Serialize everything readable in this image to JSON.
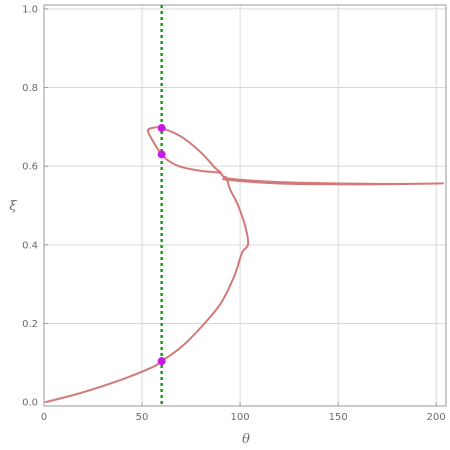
{
  "chart_data": {
    "type": "line",
    "xlabel": "θ",
    "ylabel": "ξ",
    "xlim": [
      0,
      205
    ],
    "ylim": [
      -0.01,
      1.01
    ],
    "xticks": [
      0,
      50,
      100,
      150,
      200
    ],
    "xtick_labels": [
      "0",
      "50",
      "100",
      "150",
      "200"
    ],
    "yticks": [
      0.0,
      0.2,
      0.4,
      0.6,
      0.8,
      1.0
    ],
    "ytick_labels": [
      "0.0",
      "0.2",
      "0.4",
      "0.6",
      "0.8",
      "1.0"
    ],
    "grid": true,
    "series": [
      {
        "color": "#d27a7a",
        "points": [
          [
            1,
            0.0
          ],
          [
            20,
            0.025
          ],
          [
            40,
            0.058
          ],
          [
            55,
            0.088
          ],
          [
            60,
            0.104
          ],
          [
            70,
            0.14
          ],
          [
            80,
            0.19
          ],
          [
            90,
            0.25
          ],
          [
            97,
            0.32
          ],
          [
            101,
            0.38
          ],
          [
            104,
            0.4
          ],
          [
            103,
            0.44
          ],
          [
            99,
            0.5
          ],
          [
            95,
            0.54
          ],
          [
            93,
            0.57
          ],
          [
            92,
            0.572
          ],
          [
            95,
            0.568
          ],
          [
            110,
            0.562
          ],
          [
            130,
            0.558
          ],
          [
            170,
            0.555
          ],
          [
            200,
            0.556
          ],
          [
            200,
            0.556
          ],
          [
            175,
            0.554
          ],
          [
            150,
            0.554
          ],
          [
            120,
            0.556
          ],
          [
            94,
            0.565
          ],
          [
            92,
            0.57
          ],
          [
            90,
            0.582
          ],
          [
            87,
            0.585
          ],
          [
            80,
            0.588
          ],
          [
            70,
            0.598
          ],
          [
            64,
            0.612
          ],
          [
            60,
            0.63
          ],
          [
            56,
            0.66
          ],
          [
            53,
            0.69
          ],
          [
            56,
            0.698
          ],
          [
            60,
            0.697
          ],
          [
            70,
            0.675
          ],
          [
            80,
            0.635
          ],
          [
            87,
            0.597
          ],
          [
            90,
            0.585
          ]
        ]
      }
    ],
    "vertical_line": {
      "x": 60,
      "color": "#1f9a1f",
      "style": "dashed"
    },
    "markers": [
      {
        "x": 60,
        "y": 0.697,
        "color": "#cc18e6"
      },
      {
        "x": 60,
        "y": 0.63,
        "color": "#cc18e6"
      },
      {
        "x": 60,
        "y": 0.104,
        "color": "#cc18e6"
      }
    ]
  }
}
